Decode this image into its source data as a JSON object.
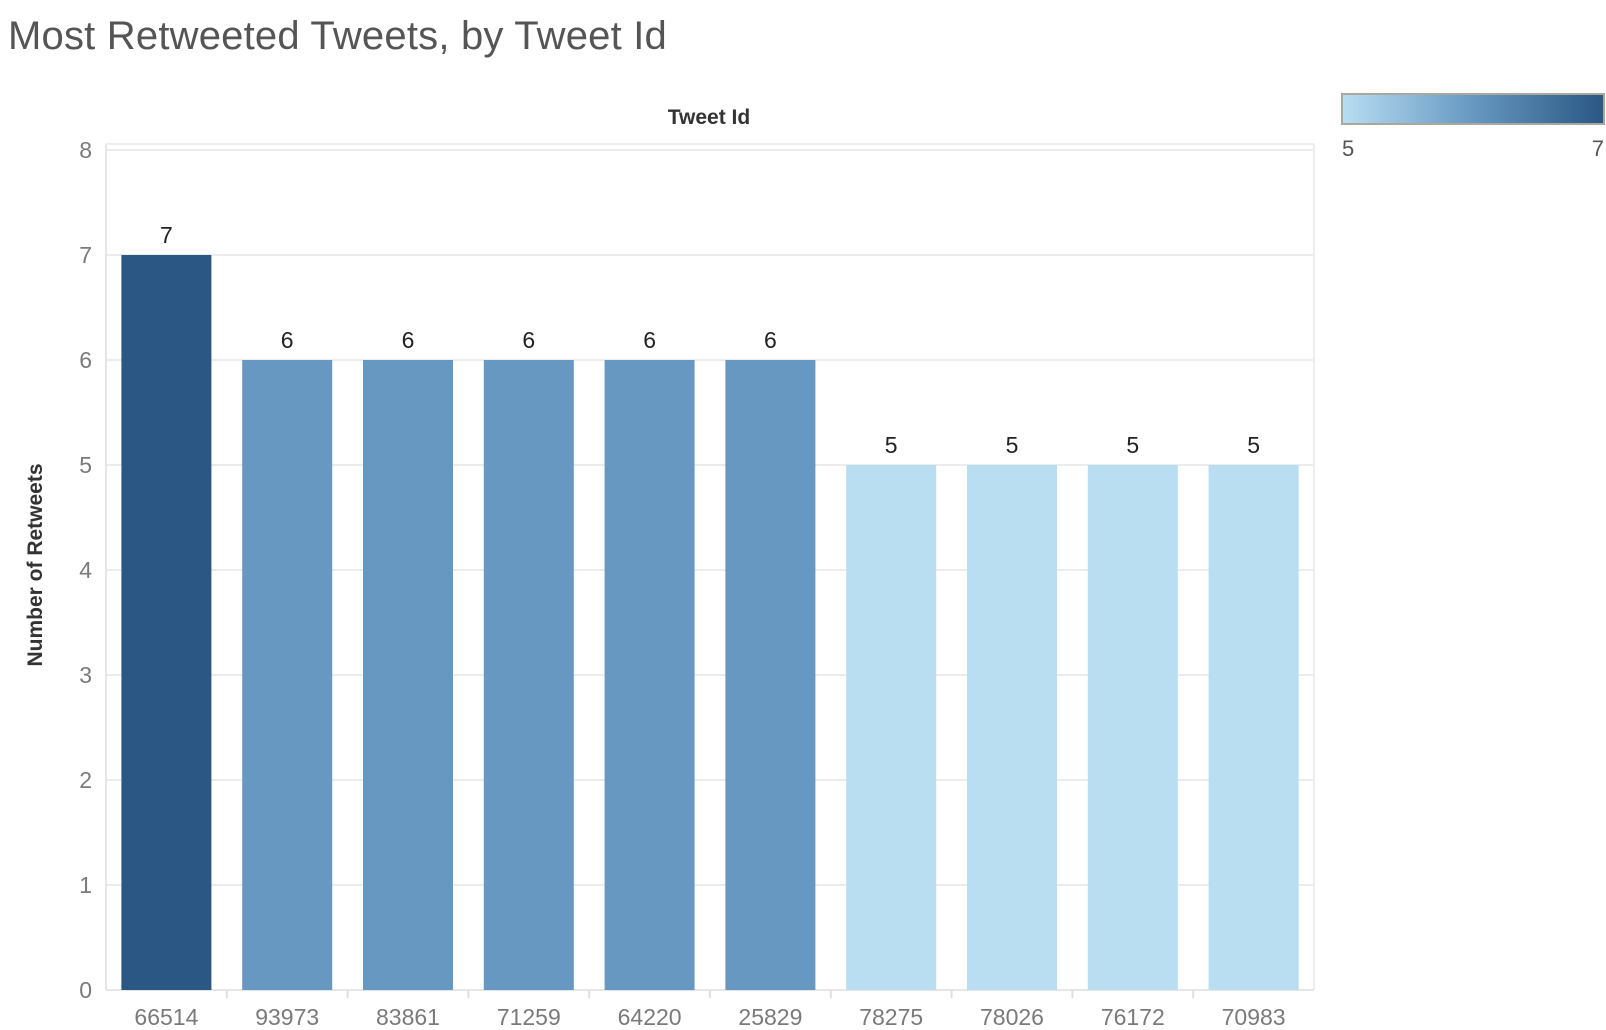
{
  "title": "Most Retweeted Tweets, by Tweet Id",
  "chart_data": {
    "type": "bar",
    "title": "Most Retweeted Tweets, by Tweet Id",
    "xlabel": "Tweet Id",
    "ylabel": "Number of Retweets",
    "categories": [
      "66514",
      "93973",
      "83861",
      "71259",
      "64220",
      "25829",
      "78275",
      "78026",
      "76172",
      "70983"
    ],
    "values": [
      7,
      6,
      6,
      6,
      6,
      6,
      5,
      5,
      5,
      5
    ],
    "ylim": [
      0,
      8
    ],
    "yticks": [
      0,
      1,
      2,
      3,
      4,
      5,
      6,
      7,
      8
    ],
    "grid": true,
    "data_labels": true,
    "color_legend": {
      "min": 5,
      "max": 7,
      "min_label": "5",
      "max_label": "7",
      "min_color": "#b9ddf1",
      "mid_color": "#6798c1",
      "max_color": "#2a5783",
      "placement": "top-right"
    }
  }
}
